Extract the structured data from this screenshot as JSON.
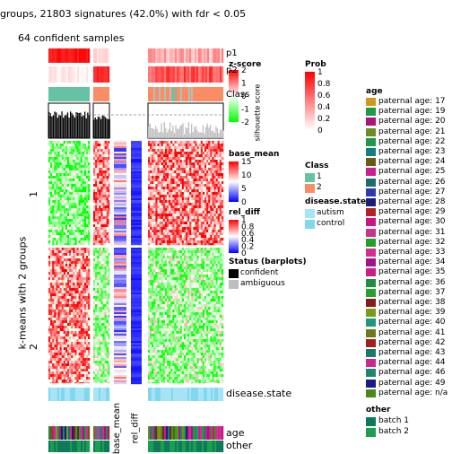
{
  "title": "groups, 21803 signatures (42.0%) with fdr < 0.05",
  "subtitle": "64 confident samples",
  "row_title": "k-means with 2 groups",
  "row_groups": [
    "1",
    "2"
  ],
  "column_annotations_bottom": [
    "disease.state",
    "age",
    "other"
  ],
  "column_annotations_rotated": [
    "base_mean",
    "rel_diff"
  ],
  "top_annotation_labels": [
    "p1",
    "p2",
    "Class",
    "silhouette score"
  ],
  "legends": {
    "prob": {
      "title": "Prob",
      "ticks": [
        "1",
        "0.8",
        "0.6",
        "0.4",
        "0.2",
        "0"
      ],
      "colors": [
        "#ff0000",
        "#ffffff"
      ]
    },
    "zscore": {
      "title": "z-score",
      "ticks": [
        "2",
        "1",
        "0",
        "-1",
        "-2"
      ],
      "colors": [
        "#ff0000",
        "#ffffff",
        "#00ff00"
      ]
    },
    "class": {
      "title": "Class",
      "items": [
        {
          "label": "1",
          "color": "#66c2a5"
        },
        {
          "label": "2",
          "color": "#fc8d62"
        }
      ]
    },
    "base_mean": {
      "title": "base_mean",
      "ticks": [
        "15",
        "10",
        "5",
        "0"
      ],
      "colors": [
        "#ff0000",
        "#ffffff",
        "#0000ff"
      ]
    },
    "rel_diff": {
      "title": "rel_diff",
      "ticks": [
        "1",
        "0.8",
        "0.6",
        "0.4",
        "0.2",
        "0"
      ],
      "colors": [
        "#ff0000",
        "#ffffff",
        "#0000ff"
      ]
    },
    "status": {
      "title": "Status (barplots)",
      "items": [
        {
          "label": "confident",
          "color": "#000000"
        },
        {
          "label": "ambiguous",
          "color": "#bebebe"
        }
      ]
    },
    "disease_state": {
      "title": "disease.state",
      "items": [
        {
          "label": "autism",
          "color": "#a6e4f5"
        },
        {
          "label": "control",
          "color": "#7fd8f0"
        }
      ]
    },
    "age": {
      "title": "age",
      "items": [
        {
          "label": "paternal age: 17",
          "color": "#d4961c"
        },
        {
          "label": "paternal age: 19",
          "color": "#1e9a48"
        },
        {
          "label": "paternal age: 20",
          "color": "#b0127a"
        },
        {
          "label": "paternal age: 21",
          "color": "#6b8e23"
        },
        {
          "label": "paternal age: 22",
          "color": "#1a9a4a"
        },
        {
          "label": "paternal age: 23",
          "color": "#0f7f7f"
        },
        {
          "label": "paternal age: 24",
          "color": "#6b5a10"
        },
        {
          "label": "paternal age: 25",
          "color": "#cc1f8f"
        },
        {
          "label": "paternal age: 26",
          "color": "#1a6e6e"
        },
        {
          "label": "paternal age: 27",
          "color": "#2a3cb0"
        },
        {
          "label": "paternal age: 28",
          "color": "#1c1c7a"
        },
        {
          "label": "paternal age: 29",
          "color": "#b22222"
        },
        {
          "label": "paternal age: 30",
          "color": "#c71585"
        },
        {
          "label": "paternal age: 31",
          "color": "#cc2f8f"
        },
        {
          "label": "paternal age: 32",
          "color": "#22a02a"
        },
        {
          "label": "paternal age: 33",
          "color": "#d22e8e"
        },
        {
          "label": "paternal age: 34",
          "color": "#a0138f"
        },
        {
          "label": "paternal age: 35",
          "color": "#c91d8a"
        },
        {
          "label": "paternal age: 36",
          "color": "#1f8f3f"
        },
        {
          "label": "paternal age: 37",
          "color": "#22a32a"
        },
        {
          "label": "paternal age: 38",
          "color": "#8b1a1a"
        },
        {
          "label": "paternal age: 39",
          "color": "#7a9a1a"
        },
        {
          "label": "paternal age: 40",
          "color": "#1a9a7a"
        },
        {
          "label": "paternal age: 41",
          "color": "#6a7a1a"
        },
        {
          "label": "paternal age: 42",
          "color": "#a02020"
        },
        {
          "label": "paternal age: 43",
          "color": "#1a7a6a"
        },
        {
          "label": "paternal age: 44",
          "color": "#d02590"
        },
        {
          "label": "paternal age: 46",
          "color": "#1a8a6a"
        },
        {
          "label": "paternal age: 49",
          "color": "#1a1a8a"
        },
        {
          "label": "paternal age: n/a",
          "color": "#4a8a1a"
        }
      ]
    },
    "other": {
      "title": "other",
      "items": [
        {
          "label": "batch 1",
          "color": "#0e7a5a"
        },
        {
          "label": "batch 2",
          "color": "#18a050"
        }
      ]
    }
  },
  "chart_data": {
    "type": "heatmap",
    "title": "groups, 21803 signatures (42.0%) with fdr < 0.05",
    "subtitle": "64 confident samples",
    "row_title": "k-means with 2 groups",
    "row_groups": [
      "1",
      "2"
    ],
    "column_groups": [
      {
        "class": "1",
        "status": "confident"
      },
      {
        "class": "2",
        "status": "confident"
      },
      {
        "class": "2",
        "status": "ambiguous"
      }
    ],
    "value_scale": "z-score",
    "zlim": [
      -2,
      2
    ]
  }
}
